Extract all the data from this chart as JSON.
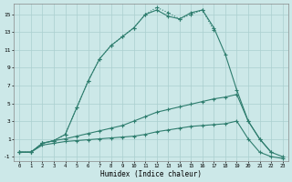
{
  "xlabel": "Humidex (Indice chaleur)",
  "x": [
    0,
    1,
    2,
    3,
    4,
    5,
    6,
    7,
    8,
    9,
    10,
    11,
    12,
    13,
    14,
    15,
    16,
    17,
    18,
    19,
    20,
    21,
    22,
    23
  ],
  "line_dotted": [
    -0.5,
    -0.5,
    0.5,
    0.8,
    1.5,
    4.5,
    7.5,
    10.0,
    11.5,
    12.5,
    13.5,
    15.0,
    15.8,
    15.2,
    14.5,
    15.0,
    15.5,
    13.2,
    null,
    null,
    null,
    null,
    null,
    null
  ],
  "line_solid_peak": [
    -0.5,
    -0.5,
    0.5,
    0.8,
    1.5,
    4.5,
    7.5,
    10.0,
    11.5,
    12.5,
    13.5,
    15.0,
    15.5,
    14.8,
    14.5,
    15.2,
    15.5,
    13.5,
    10.5,
    6.5,
    3.0,
    1.0,
    -0.5,
    -1.0
  ],
  "line_upper_flat": [
    -0.5,
    -0.5,
    0.5,
    0.8,
    1.0,
    1.3,
    1.6,
    1.9,
    2.2,
    2.5,
    3.0,
    3.5,
    4.0,
    4.3,
    4.6,
    4.9,
    5.2,
    5.5,
    5.7,
    6.0,
    3.0,
    1.0,
    -0.5,
    null
  ],
  "line_lower_flat": [
    -0.5,
    -0.5,
    0.3,
    0.5,
    0.7,
    0.8,
    0.9,
    1.0,
    1.1,
    1.2,
    1.3,
    1.5,
    1.8,
    2.0,
    2.2,
    2.4,
    2.5,
    2.6,
    2.7,
    3.0,
    1.0,
    -0.5,
    -1.0,
    -1.2
  ],
  "ylim": [
    -1.5,
    16.2
  ],
  "xlim": [
    -0.5,
    23.5
  ],
  "yticks": [
    -1,
    1,
    3,
    5,
    7,
    9,
    11,
    13,
    15
  ],
  "xticks": [
    0,
    1,
    2,
    3,
    4,
    5,
    6,
    7,
    8,
    9,
    10,
    11,
    12,
    13,
    14,
    15,
    16,
    17,
    18,
    19,
    20,
    21,
    22,
    23
  ],
  "color": "#2e7d6e",
  "bg_color": "#cce8e8",
  "grid_color": "#aacfcf"
}
